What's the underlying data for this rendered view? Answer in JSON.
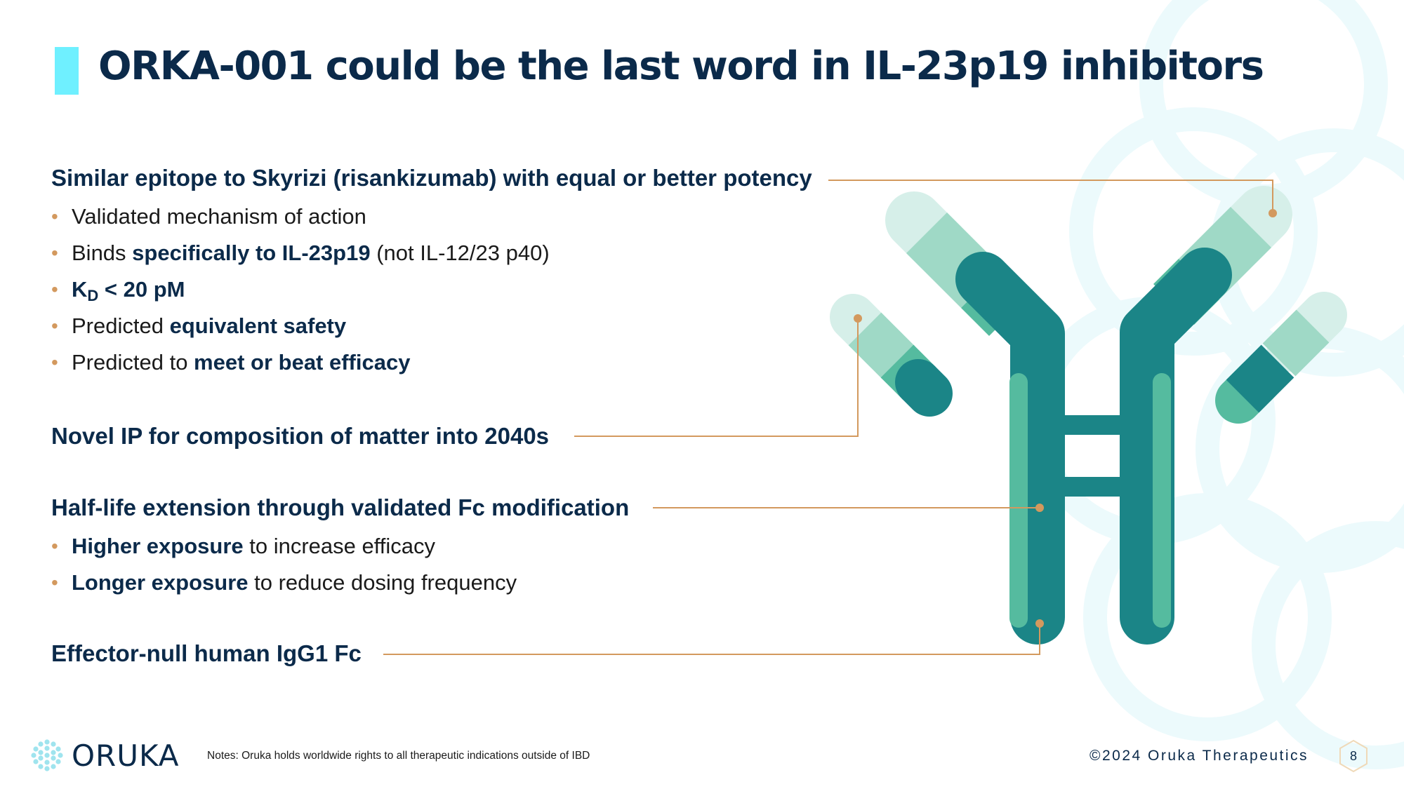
{
  "slide": {
    "title": "ORKA-001 could be the last word in IL-23p19 inhibitors",
    "accent_color": "#6ff0ff",
    "leader_line_color": "#d3995e"
  },
  "sections": {
    "epitope": {
      "heading": "Similar epitope to Skyrizi (risankizumab) with equal or better potency",
      "bullets": {
        "b1": {
          "text": "Validated mechanism of action"
        },
        "b2": {
          "pre": "Binds ",
          "bold": "specifically to IL-23p19",
          "post": " (not IL-12/23 p40)"
        },
        "b3": {
          "k": "K",
          "sub": "D",
          "rest": " < 20 pM"
        },
        "b4": {
          "pre": "Predicted ",
          "bold": "equivalent safety"
        },
        "b5": {
          "pre": "Predicted to ",
          "bold": "meet or beat efficacy"
        }
      }
    },
    "ip": {
      "heading": "Novel IP for composition of matter into 2040s"
    },
    "half_life": {
      "heading": "Half-life extension through validated Fc modification",
      "bullets": {
        "b1": {
          "bold": "Higher exposure",
          "post": " to increase efficacy"
        },
        "b2": {
          "bold": "Longer exposure",
          "post": " to reduce dosing frequency"
        }
      }
    },
    "fc": {
      "heading": "Effector-null human IgG1 Fc"
    }
  },
  "diagram": {
    "colors": {
      "dark": "#1b8587",
      "mid": "#55bb9f",
      "light": "#9fd9c6",
      "pale": "#d6efe9"
    }
  },
  "footer": {
    "brand": "ORUKA",
    "notes": "Notes: Oruka holds worldwide rights to all therapeutic indications outside of IBD",
    "copyright": "©2024 Oruka Therapeutics",
    "page_number": "8"
  }
}
